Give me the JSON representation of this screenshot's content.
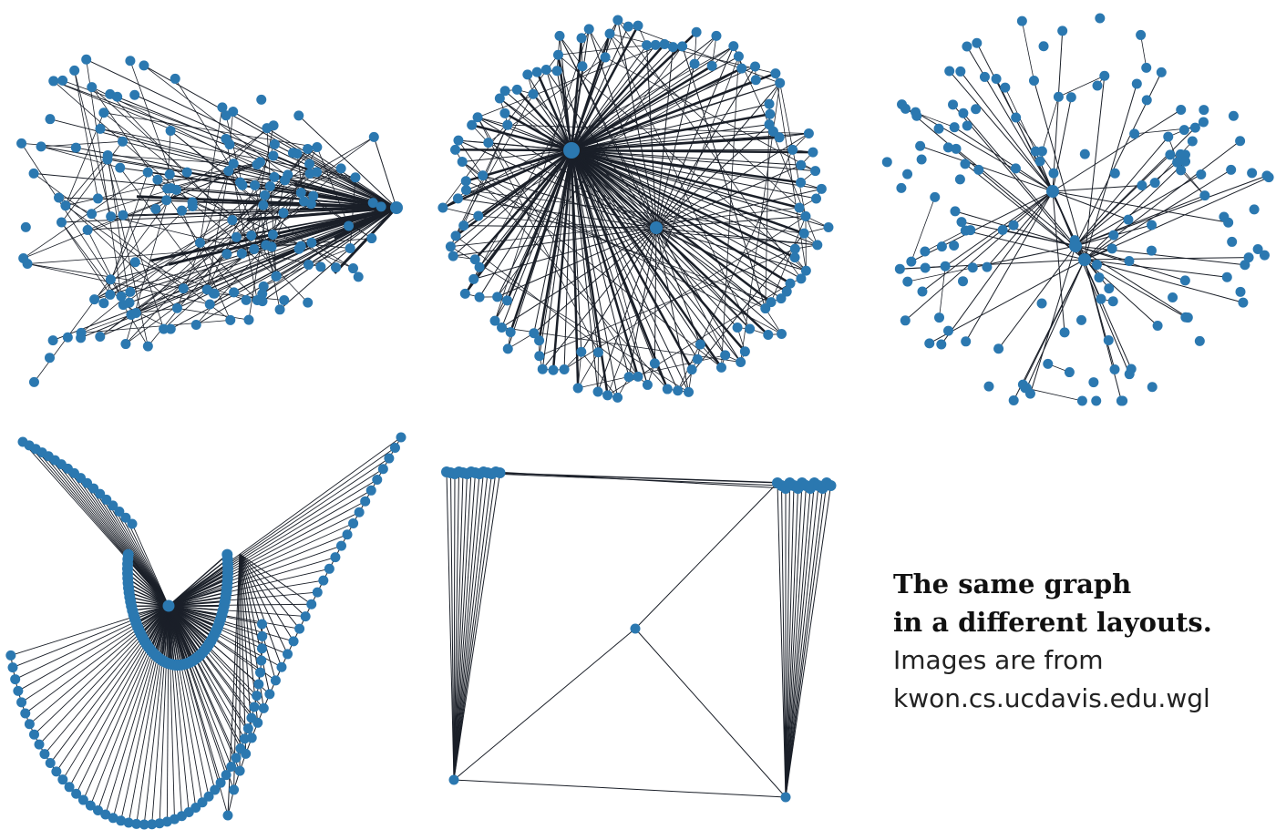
{
  "caption": {
    "line1": "The same graph",
    "line2": "in a different layouts.",
    "line3": "Images are from",
    "line4": "kwon.cs.ucdavis.edu.wgl"
  },
  "colors": {
    "node": "#2b78b0",
    "edge": "#1a1f28"
  },
  "panels": [
    {
      "name": "layout-1",
      "style": "hub-right-fan"
    },
    {
      "name": "layout-2",
      "style": "circular-two-hubs"
    },
    {
      "name": "layout-3",
      "style": "force-directed"
    },
    {
      "name": "layout-4",
      "style": "checkmark-arc"
    },
    {
      "name": "layout-5",
      "style": "four-corner-square"
    }
  ]
}
